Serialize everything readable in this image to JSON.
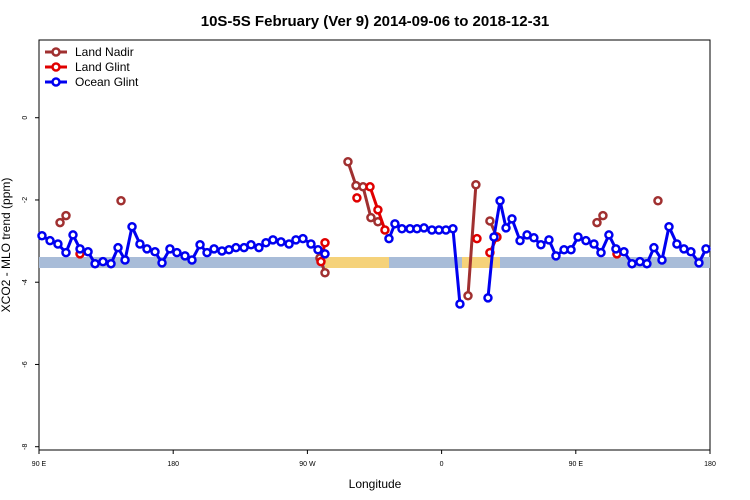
{
  "chart_data": {
    "type": "line",
    "title": "10S-5S February (Ver 9)   2014-09-06 to 2018-12-31",
    "x_label": "Longitude",
    "y_label": "XCO2 - MLO trend (ppm)",
    "xlim": [
      90,
      540
    ],
    "ylim": [
      -8.08,
      1.89
    ],
    "xticks": [
      {
        "value": 90,
        "label": "90 E"
      },
      180,
      {
        "value": 270,
        "label": "90 W"
      },
      {
        "value": 360,
        "label": "0"
      },
      {
        "value": 450,
        "label": "90 E"
      },
      {
        "value": 540,
        "label": "180"
      }
    ],
    "yticks": [
      -8,
      -6,
      -4,
      -2,
      0
    ],
    "legend": "top-left",
    "series": [
      {
        "name": "Land Nadir",
        "color": "#a03030",
        "x": [
          104.1,
          108.1,
          null,
          145.0,
          null,
          278.4,
          281.8,
          null,
          297.2,
          302.6,
          307.3,
          312.6,
          317.3,
          null,
          377.7,
          383.0,
          null,
          392.4,
          397.1,
          null,
          464.2,
          468.2,
          null,
          505.1
        ],
        "values": [
          -2.55,
          -2.38,
          null,
          -2.02,
          null,
          -3.41,
          -3.77,
          null,
          -1.07,
          -1.65,
          -1.68,
          -2.43,
          -2.53,
          null,
          -4.33,
          -1.63,
          null,
          -2.51,
          -2.9,
          null,
          -2.55,
          -2.38,
          null,
          -2.02
        ]
      },
      {
        "name": "Land Glint",
        "color": "#e00000",
        "x": [
          117.5,
          null,
          279.1,
          281.8,
          null,
          303.2,
          null,
          312.0,
          317.3,
          322.0,
          null,
          383.7,
          null,
          392.4,
          397.1,
          null,
          477.6
        ],
        "values": [
          -3.31,
          null,
          -3.5,
          -3.04,
          null,
          -1.95,
          null,
          -1.68,
          -2.24,
          -2.73,
          null,
          -2.94,
          null,
          -3.28,
          -2.9,
          null,
          -3.31
        ]
      },
      {
        "name": "Ocean Glint",
        "color": "#0000f0",
        "x": [
          92.0,
          97.4,
          102.7,
          108.1,
          112.8,
          117.5,
          122.9,
          127.6,
          132.9,
          138.3,
          143.0,
          147.7,
          152.4,
          157.7,
          162.4,
          167.8,
          172.5,
          177.8,
          182.5,
          187.9,
          192.6,
          198.0,
          202.7,
          207.4,
          212.7,
          217.4,
          222.1,
          227.5,
          232.2,
          237.5,
          242.2,
          246.9,
          252.3,
          257.7,
          262.3,
          267.0,
          272.4,
          277.1,
          281.8,
          null,
          324.7,
          328.7,
          333.4,
          338.8,
          343.5,
          348.2,
          353.5,
          358.2,
          362.9,
          367.6,
          372.3,
          null,
          391.1,
          395.1,
          399.2,
          403.2,
          407.2,
          412.6,
          417.3,
          421.9,
          426.6,
          432.0,
          436.7,
          442.1,
          446.8,
          451.5,
          456.8,
          462.2,
          466.9,
          472.2,
          476.9,
          482.3,
          487.7,
          493.0,
          497.7,
          502.4,
          507.8,
          512.5,
          517.8,
          522.5,
          527.2,
          532.6,
          537.3
        ],
        "values": [
          -2.87,
          -2.99,
          -3.07,
          -3.28,
          -2.85,
          -3.19,
          -3.26,
          -3.55,
          -3.5,
          -3.55,
          -3.16,
          -3.46,
          -2.65,
          -3.07,
          -3.19,
          -3.26,
          -3.53,
          -3.19,
          -3.28,
          -3.36,
          -3.46,
          -3.09,
          -3.28,
          -3.19,
          -3.24,
          -3.21,
          -3.16,
          -3.16,
          -3.09,
          -3.16,
          -3.04,
          -2.97,
          -3.02,
          -3.07,
          -2.97,
          -2.94,
          -3.07,
          -3.21,
          -3.31,
          null,
          -2.94,
          -2.58,
          -2.7,
          -2.7,
          -2.7,
          -2.68,
          -2.73,
          -2.73,
          -2.73,
          -2.7,
          -4.53,
          null,
          -4.38,
          -2.9,
          -2.02,
          -2.68,
          -2.46,
          -2.99,
          -2.85,
          -2.92,
          -3.09,
          -2.97,
          -3.36,
          -3.21,
          -3.21,
          -2.9,
          -2.99,
          -3.07,
          -3.28,
          -2.85,
          -3.19,
          -3.26,
          -3.55,
          -3.5,
          -3.55,
          -3.16,
          -3.46,
          -2.65,
          -3.07,
          -3.19,
          -3.26,
          -3.53,
          -3.19
        ]
      }
    ]
  }
}
